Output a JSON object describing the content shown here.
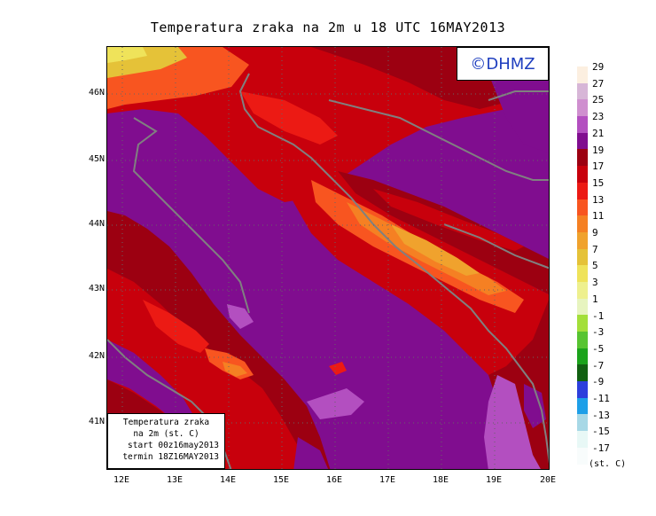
{
  "title": "Temperatura zraka na 2m u 18 UTC 16MAY2013",
  "logo": "©DHMZ",
  "info_box": {
    "line1": "Temperatura zraka",
    "line2": "na 2m (st. C)",
    "line3": "start 00z16may2013",
    "line4": "termin 18Z16MAY2013"
  },
  "lat_labels": [
    "46N",
    "45N",
    "44N",
    "43N",
    "42N",
    "41N"
  ],
  "lon_labels": [
    "12E",
    "13E",
    "14E",
    "15E",
    "16E",
    "17E",
    "18E",
    "19E",
    "20E"
  ],
  "legend": {
    "labels": [
      "29",
      "27",
      "25",
      "23",
      "21",
      "19",
      "17",
      "15",
      "13",
      "11",
      "9",
      "7",
      "5",
      "3",
      "1",
      "-1",
      "-3",
      "-5",
      "-7",
      "-9",
      "-11",
      "-13",
      "-15",
      "-17"
    ],
    "colors": [
      "#fcefe0",
      "#d7b6d7",
      "#cf8fcf",
      "#b34fc0",
      "#800d8f",
      "#9c0011",
      "#c8000c",
      "#ec1a14",
      "#f85520",
      "#f58023",
      "#f0a22d",
      "#e5c238",
      "#efe35a",
      "#eef08e",
      "#e7f4bf",
      "#a3df3a",
      "#57c431",
      "#1ba31b",
      "#116011",
      "#2d3fdc",
      "#1d9fe8",
      "#a7d8e6",
      "#e8f8f6",
      "#f8fcfc"
    ],
    "unit": "(st. C)"
  },
  "colors": {
    "sea": "#800d8f",
    "coast": "#808080",
    "logo_text": "#1f3fbf"
  }
}
